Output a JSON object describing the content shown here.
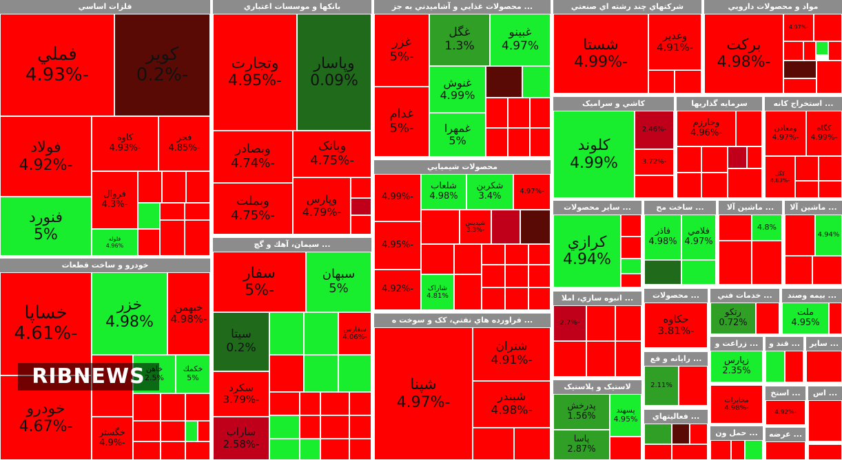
{
  "watermark": "RIBNEWS",
  "colors": {
    "red": "#ff0000",
    "dark_red": "#c0001b",
    "very_dark_red": "#5a0a05",
    "green": "#18ed2e",
    "dark_green": "#1f6b1b",
    "mid_green": "#2f9f25",
    "header": "#8c8c8c"
  },
  "sections": [
    {
      "title": "فلزات اساسي",
      "tiles": [
        {
          "name": "فملي",
          "pct": "-4.93%"
        },
        {
          "name": "كوير",
          "pct": "-0.2%"
        },
        {
          "name": "فولاد",
          "pct": "-4.92%"
        },
        {
          "name": "كاوه",
          "pct": "-4.93%"
        },
        {
          "name": "فجر",
          "pct": "-4.85%"
        },
        {
          "name": "فنورد",
          "pct": "5%"
        },
        {
          "name": "فروال",
          "pct": "-4.3%"
        },
        {
          "name": "فلوله",
          "pct": "4.96%"
        }
      ]
    },
    {
      "title": "بانكها و موسسات اعتباري",
      "tiles": [
        {
          "name": "وتجارت",
          "pct": "-4.95%"
        },
        {
          "name": "وپاسار",
          "pct": "0.09%"
        },
        {
          "name": "وبصادر",
          "pct": "-4.74%"
        },
        {
          "name": "وبملت",
          "pct": "-4.75%"
        },
        {
          "name": "وبانک",
          "pct": "-4.75%"
        },
        {
          "name": "وپارس",
          "pct": "-4.79%"
        }
      ]
    },
    {
      "title": "... محصولات غذايي و آشاميدني به جز",
      "tiles": [
        {
          "name": "غزر",
          "pct": "-5%"
        },
        {
          "name": "غگل",
          "pct": "1.3%"
        },
        {
          "name": "غبينو",
          "pct": "4.97%"
        },
        {
          "name": "غنوش",
          "pct": "4.99%"
        },
        {
          "name": "غدام",
          "pct": "-5%"
        },
        {
          "name": "غمهرا",
          "pct": "5%"
        }
      ]
    },
    {
      "title": "شركتهاي چند رشته اي صنعتي",
      "tiles": [
        {
          "name": "شستا",
          "pct": "-4.99%"
        },
        {
          "name": "وغدير",
          "pct": "-4.91%"
        }
      ]
    },
    {
      "title": "مواد و محصولات دارويي",
      "tiles": [
        {
          "name": "بركت",
          "pct": "-4.98%"
        },
        {
          "name": "",
          "pct": "-4.97%"
        }
      ]
    },
    {
      "title": "كاشي و سراميک",
      "tiles": [
        {
          "name": "كلوند",
          "pct": "4.99%"
        },
        {
          "name": "",
          "pct": "-2.46%"
        },
        {
          "name": "",
          "pct": "-3.72%"
        }
      ]
    },
    {
      "title": "سرمايه گذاريها",
      "tiles": [
        {
          "name": "وخارزم",
          "pct": "-4.96%"
        }
      ]
    },
    {
      "title": "... استخراج كانه",
      "tiles": [
        {
          "name": "ومعادن",
          "pct": "-4.97%"
        },
        {
          "name": "كگاه",
          "pct": "-4.99%"
        },
        {
          "name": "كگل",
          "pct": "-4.83%"
        }
      ]
    },
    {
      "title": "محصولات شيميايي",
      "tiles": [
        {
          "name": "شلعاب",
          "pct": "4.98%"
        },
        {
          "name": "شكربن",
          "pct": "3.4%"
        },
        {
          "name": "",
          "pct": "-4.99%"
        },
        {
          "name": "",
          "pct": "-4.97%"
        },
        {
          "name": "شپديس",
          "pct": "-3.3%"
        },
        {
          "name": "",
          "pct": "-4.95%"
        },
        {
          "name": "",
          "pct": "-4.92%"
        },
        {
          "name": "شاراک",
          "pct": "4.81%"
        }
      ]
    },
    {
      "title": "... سيمان، آهك و گچ",
      "tiles": [
        {
          "name": "سفار",
          "pct": "-5%"
        },
        {
          "name": "سبهان",
          "pct": "5%"
        },
        {
          "name": "سيتا",
          "pct": "0.2%"
        },
        {
          "name": "سفارس",
          "pct": "-4.06%"
        },
        {
          "name": "سكرد",
          "pct": "-3.79%"
        },
        {
          "name": "ساراب",
          "pct": "-2.58%"
        }
      ]
    },
    {
      "title": "خودرو و ساخت قطعات",
      "tiles": [
        {
          "name": "خساپا",
          "pct": "-4.61%"
        },
        {
          "name": "خزر",
          "pct": "4.98%"
        },
        {
          "name": "خبهمن",
          "pct": "-4.98%"
        },
        {
          "name": "خودرو",
          "pct": "-4.67%"
        },
        {
          "name": "خكمك",
          "pct": "5%"
        },
        {
          "name": "خاهن",
          "pct": "2.5%"
        },
        {
          "name": "خگستر",
          "pct": "-4.9%"
        }
      ]
    },
    {
      "title": "... فراورده هاي نفتي، كک و سوخت ه",
      "tiles": [
        {
          "name": "شپنا",
          "pct": "-4.97%"
        },
        {
          "name": "شتران",
          "pct": "-4.91%"
        },
        {
          "name": "شبندر",
          "pct": "-4.98%"
        }
      ]
    },
    {
      "title": "... ساير محصولات",
      "tiles": [
        {
          "name": "كرازي",
          "pct": "4.94%"
        }
      ]
    },
    {
      "title": "... ساخت مح",
      "tiles": [
        {
          "name": "فاذر",
          "pct": "4.98%"
        },
        {
          "name": "فلامي",
          "pct": "4.97%"
        }
      ]
    },
    {
      "title": "... ماشين آلا",
      "tiles": [
        {
          "name": "",
          "pct": "4.8%"
        }
      ]
    },
    {
      "title": "... ماشين آلا",
      "tiles": [
        {
          "name": "",
          "pct": "4.94%"
        }
      ]
    },
    {
      "title": "... انبوه سازي، املا",
      "tiles": [
        {
          "name": "",
          "pct": "-2.7%"
        }
      ]
    },
    {
      "title": "... محصولات",
      "tiles": [
        {
          "name": "حكاوه",
          "pct": "-3.81%"
        }
      ]
    },
    {
      "title": "... خدمات فني",
      "tiles": [
        {
          "name": "رتكو",
          "pct": "0.72%"
        }
      ]
    },
    {
      "title": "... بيمه وصند",
      "tiles": [
        {
          "name": "ملت",
          "pct": "4.95%"
        }
      ]
    },
    {
      "title": "... رايانه و فع",
      "tiles": [
        {
          "name": "",
          "pct": "2.11%"
        }
      ]
    },
    {
      "title": "... زراعت و",
      "tiles": [
        {
          "name": "زپارس",
          "pct": "2.35%"
        }
      ]
    },
    {
      "title": "... قند و",
      "tiles": []
    },
    {
      "title": "... ساير",
      "tiles": []
    },
    {
      "title": "لاستيک و پلاستيک",
      "tiles": [
        {
          "name": "پدرخش",
          "pct": "1.56%"
        },
        {
          "name": "پسهند",
          "pct": "4.95%"
        },
        {
          "name": "پاسا",
          "pct": "2.87%"
        }
      ]
    },
    {
      "title": "... فعاليتهاي",
      "tiles": []
    },
    {
      "title": "مخابرات",
      "tiles": [
        {
          "name": "",
          "pct": "-4.98%"
        }
      ]
    },
    {
      "title": "... استخ",
      "tiles": [
        {
          "name": "",
          "pct": "-4.92%"
        }
      ]
    },
    {
      "title": "... اس",
      "tiles": []
    },
    {
      "title": "... حمل ون",
      "tiles": []
    },
    {
      "title": "... عرضه",
      "tiles": []
    }
  ]
}
